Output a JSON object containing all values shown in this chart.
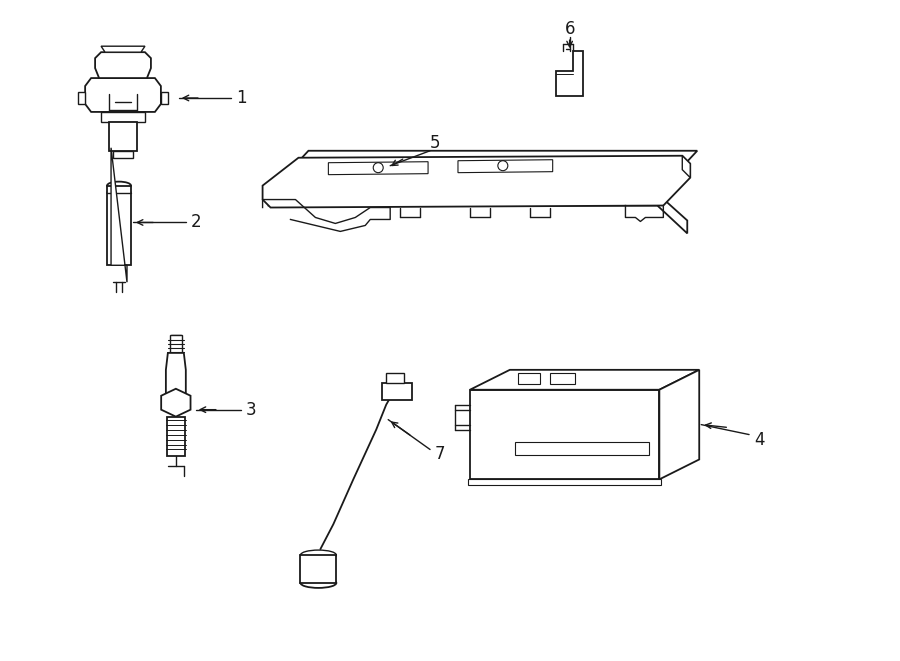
{
  "background_color": "#ffffff",
  "line_color": "#1a1a1a",
  "line_width": 1.0,
  "figsize": [
    9.0,
    6.61
  ],
  "dpi": 100
}
